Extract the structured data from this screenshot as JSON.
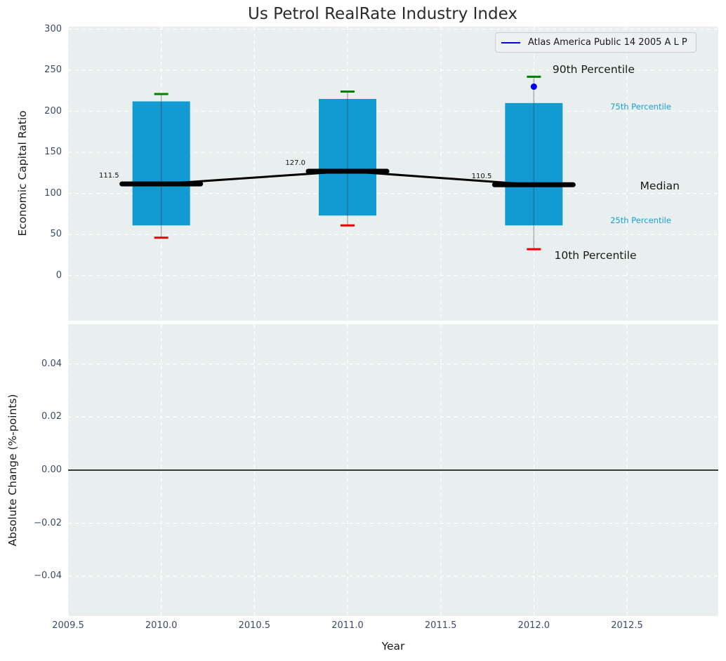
{
  "chart_data": {
    "type": "boxplot",
    "title": "Us Petrol RealRate Industry Index",
    "xlabel": "Year",
    "legend": {
      "label": "Atlas America Public 14 2005 A L P"
    },
    "colors": {
      "plot_bg": "#e9eeee",
      "grid": "#ffffff",
      "box_fill": "#119bd2",
      "cyan_text": "#18a0d4",
      "green_cap": "#008000",
      "red_cap": "#e60000",
      "blue_marker": "#0000e6",
      "median_line": "#000000",
      "whisker_line": "#333333",
      "tick_text": "#3c4a66",
      "zero_line": "#000000"
    },
    "xticks": {
      "values": [
        2009.5,
        2010.0,
        2010.5,
        2011.0,
        2011.5,
        2012.0,
        2012.5
      ],
      "labels": [
        "2009.5",
        "2010.0",
        "2010.5",
        "2011.0",
        "2011.5",
        "2012.0",
        "2012.5"
      ]
    },
    "xlim": [
      2009.5,
      2012.99
    ],
    "top_axes": {
      "ylabel": "Economic Capital Ratio",
      "ylim": [
        -55,
        303
      ],
      "yticks": {
        "values": [
          0,
          50,
          100,
          150,
          200,
          250,
          300
        ],
        "labels": [
          "0",
          "50",
          "100",
          "150",
          "200",
          "250",
          "300"
        ]
      },
      "groups": [
        {
          "year": 2010,
          "p10": 46,
          "p25": 61,
          "median": 111.5,
          "p75": 212,
          "p90": 221,
          "median_label": "111.5"
        },
        {
          "year": 2011,
          "p10": 61,
          "p25": 73,
          "median": 127.0,
          "p75": 215,
          "p90": 224,
          "median_label": "127.0"
        },
        {
          "year": 2012,
          "p10": 32,
          "p25": 61,
          "median": 110.5,
          "p75": 210,
          "p90": 242,
          "median_label": "110.5"
        }
      ],
      "company_point": {
        "year": 2012,
        "value": 230
      },
      "annotations": [
        {
          "text": "90th Percentile",
          "x": 2012.1,
          "y": 250,
          "kind": "major"
        },
        {
          "text": "75th Percentile",
          "x": 2012.41,
          "y": 205,
          "kind": "minor"
        },
        {
          "text": "Median",
          "x": 2012.57,
          "y": 108,
          "kind": "major"
        },
        {
          "text": "25th Percentile",
          "x": 2012.41,
          "y": 66,
          "kind": "minor"
        },
        {
          "text": "10th Percentile",
          "x": 2012.11,
          "y": 24,
          "kind": "major"
        }
      ]
    },
    "bottom_axes": {
      "ylabel": "Absolute Change (%-points)",
      "ylim": [
        -0.055,
        0.055
      ],
      "yticks": {
        "values": [
          0.04,
          0.02,
          0.0,
          -0.02,
          -0.04
        ],
        "labels": [
          "0.04",
          "0.02",
          "0.00",
          "−0.02",
          "−0.04"
        ]
      },
      "zero_line_y": 0.0
    }
  }
}
